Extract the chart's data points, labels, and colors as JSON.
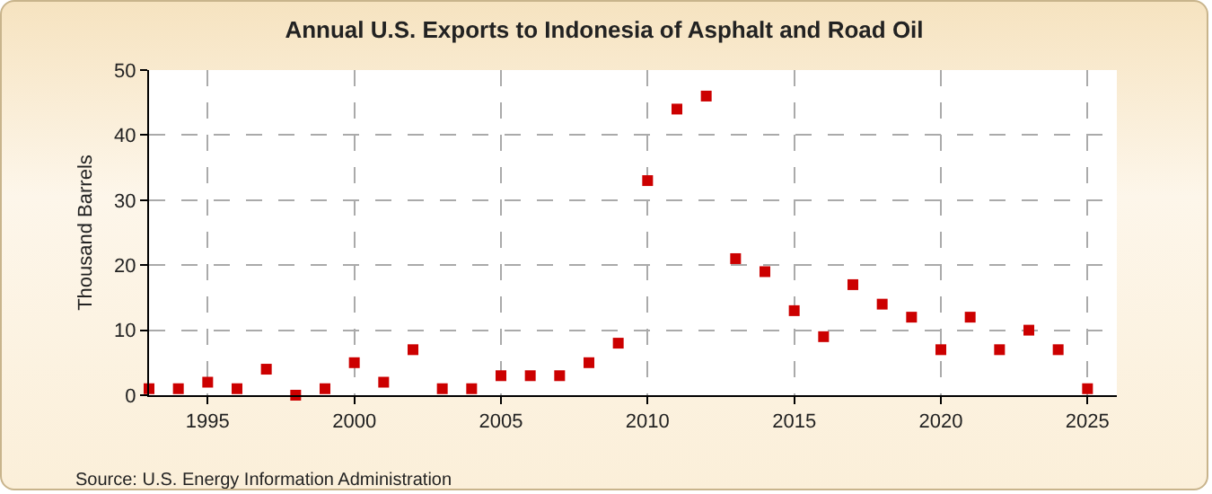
{
  "chart_data": {
    "type": "scatter",
    "title": "Annual U.S. Exports to Indonesia of Asphalt and Road Oil",
    "ylabel": "Thousand Barrels",
    "x": [
      1993,
      1994,
      1995,
      1996,
      1997,
      1998,
      1999,
      2000,
      2001,
      2002,
      2003,
      2004,
      2005,
      2006,
      2007,
      2008,
      2009,
      2010,
      2011,
      2012,
      2013,
      2014,
      2015,
      2016,
      2017,
      2018,
      2019,
      2020,
      2021,
      2022,
      2023,
      2024,
      2025
    ],
    "series": [
      {
        "color": "#cc0000",
        "values": [
          1,
          1,
          2,
          1,
          4,
          0,
          1,
          5,
          2,
          7,
          1,
          1,
          3,
          3,
          3,
          5,
          8,
          33,
          44,
          46,
          21,
          19,
          13,
          9,
          17,
          14,
          12,
          7,
          12,
          7,
          10,
          7,
          1
        ]
      }
    ],
    "xlim": [
      1993,
      2026
    ],
    "xticks": [
      1995,
      2000,
      2005,
      2010,
      2015,
      2020,
      2025
    ],
    "ylim": [
      0,
      50
    ],
    "yticks": [
      0,
      10,
      20,
      30,
      40,
      50
    ],
    "grid": true,
    "marker": "square",
    "annotations": [
      "Source: U.S. Energy Information Administration"
    ]
  }
}
